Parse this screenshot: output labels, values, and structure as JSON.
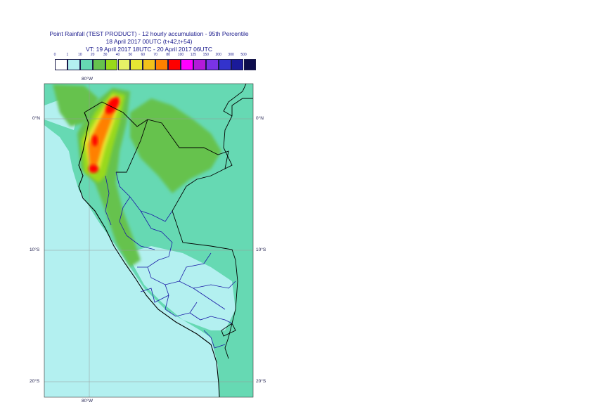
{
  "title": {
    "line1": "Point Rainfall (TEST PRODUCT) - 12 hourly accumulation - 95th Percentile",
    "line2": "18 April 2017 00UTC (t+42,t+54)",
    "line3": "VT: 19 April 2017 18UTC - 20 April 2017 06UTC"
  },
  "legend": {
    "thresholds": [
      "0",
      "1",
      "10",
      "20",
      "30",
      "40",
      "50",
      "60",
      "70",
      "80",
      "100",
      "125",
      "150",
      "200",
      "300",
      "500"
    ],
    "colors": [
      "#ffffff",
      "#b3f0f0",
      "#66d9b3",
      "#66c24d",
      "#99d91a",
      "#e6f266",
      "#e6e633",
      "#f2c21a",
      "#ff8000",
      "#ff0000",
      "#ff00ff",
      "#b31ad9",
      "#7a33e6",
      "#3333cc",
      "#1a1a99",
      "#0d0d4d"
    ]
  },
  "axes": {
    "lon_top": "80°W",
    "lon_bottom": "80°W",
    "lat_left": [
      "0°N",
      "10°S",
      "20°S"
    ],
    "lat_right": [
      "0°N",
      "10°S",
      "20°S"
    ]
  },
  "map_colors": {
    "ocean_light": "#b3f0f0",
    "moderate": "#66d9b3",
    "green": "#66c24d",
    "yellow_green": "#99d91a",
    "yellow": "#e6e633",
    "orange": "#ff8000",
    "red": "#ff0000",
    "coast": "#000000",
    "admin_border": "#1a1aa6"
  }
}
